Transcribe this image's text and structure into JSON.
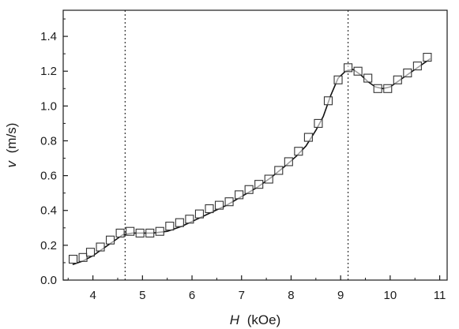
{
  "chart_data": {
    "type": "scatter",
    "title": "",
    "xlabel": {
      "var": "H",
      "unit": "(kOe)"
    },
    "ylabel": {
      "var": "v",
      "unit": "(m/s)"
    },
    "xlim": [
      3.4,
      11.15
    ],
    "ylim": [
      0.0,
      1.55
    ],
    "xticks": [
      4,
      5,
      6,
      7,
      8,
      9,
      10,
      11
    ],
    "xtick_labels": [
      "4",
      "5",
      "6",
      "7",
      "8",
      "9",
      "10",
      "11"
    ],
    "yticks": [
      0.0,
      0.2,
      0.4,
      0.6,
      0.8,
      1.0,
      1.2,
      1.4
    ],
    "ytick_labels": [
      "0.0",
      "0.2",
      "0.4",
      "0.6",
      "0.8",
      "1.0",
      "1.2",
      "1.4"
    ],
    "grid": false,
    "legend": "none",
    "vlines": [
      4.65,
      9.15
    ],
    "series": [
      {
        "kind": "markers",
        "marker": "open-square",
        "x": [
          3.6,
          3.8,
          3.95,
          4.15,
          4.35,
          4.55,
          4.75,
          4.95,
          5.15,
          5.35,
          5.55,
          5.75,
          5.95,
          6.15,
          6.35,
          6.55,
          6.75,
          6.95,
          7.15,
          7.35,
          7.55,
          7.75,
          7.95,
          8.15,
          8.35,
          8.55,
          8.75,
          8.95,
          9.15,
          9.35,
          9.55,
          9.75,
          9.95,
          10.15,
          10.35,
          10.55,
          10.75
        ],
        "y": [
          0.12,
          0.13,
          0.16,
          0.19,
          0.23,
          0.27,
          0.28,
          0.27,
          0.27,
          0.28,
          0.31,
          0.33,
          0.35,
          0.38,
          0.41,
          0.43,
          0.45,
          0.49,
          0.52,
          0.55,
          0.58,
          0.63,
          0.68,
          0.74,
          0.82,
          0.9,
          1.03,
          1.15,
          1.22,
          1.2,
          1.16,
          1.1,
          1.1,
          1.15,
          1.19,
          1.23,
          1.28
        ]
      },
      {
        "kind": "line",
        "x": [
          3.6,
          3.8,
          4.0,
          4.2,
          4.4,
          4.6,
          4.8,
          5.0,
          5.2,
          5.5,
          5.8,
          6.1,
          6.4,
          6.7,
          7.0,
          7.3,
          7.6,
          7.9,
          8.1,
          8.3,
          8.5,
          8.65,
          8.8,
          8.95,
          9.1,
          9.25,
          9.4,
          9.55,
          9.7,
          9.85,
          10.0,
          10.2,
          10.4,
          10.6,
          10.8
        ],
        "y": [
          0.09,
          0.11,
          0.14,
          0.18,
          0.22,
          0.26,
          0.27,
          0.27,
          0.27,
          0.28,
          0.31,
          0.35,
          0.39,
          0.43,
          0.48,
          0.53,
          0.59,
          0.66,
          0.71,
          0.77,
          0.86,
          0.94,
          1.06,
          1.16,
          1.2,
          1.21,
          1.18,
          1.14,
          1.11,
          1.1,
          1.11,
          1.15,
          1.19,
          1.23,
          1.27
        ]
      }
    ]
  }
}
